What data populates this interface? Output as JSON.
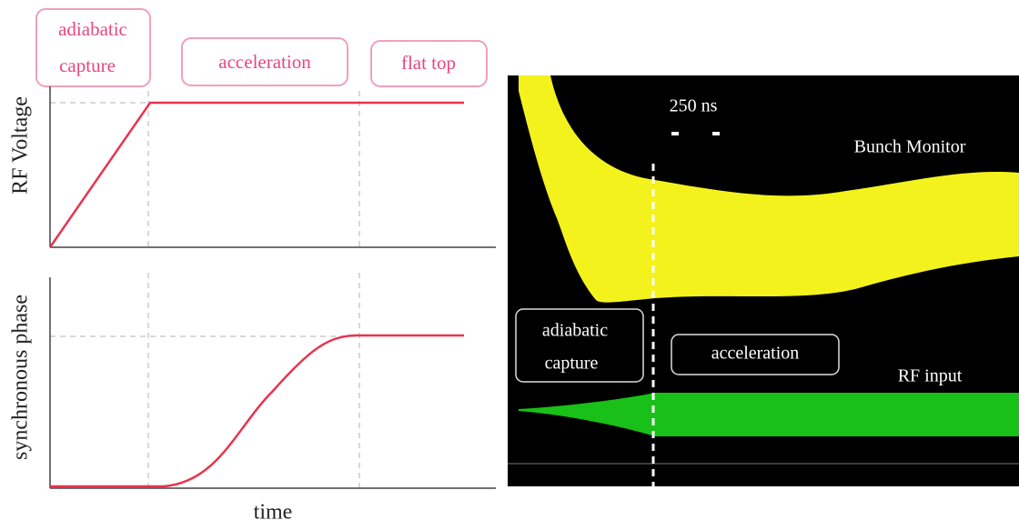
{
  "schematic": {
    "phases": {
      "capture": [
        "adiabatic",
        "capture"
      ],
      "acceleration": "acceleration",
      "flat_top": "flat top"
    },
    "top_axis_label": "RF Voltage",
    "bottom_axis_label": "synchronous phase",
    "x_axis_label": "time"
  },
  "scope": {
    "time_scale": "250 ns",
    "bunch_label": "Bunch Monitor",
    "rf_label": "RF input",
    "phases": {
      "capture": [
        "adiabatic",
        "capture"
      ],
      "acceleration": "acceleration"
    }
  }
}
